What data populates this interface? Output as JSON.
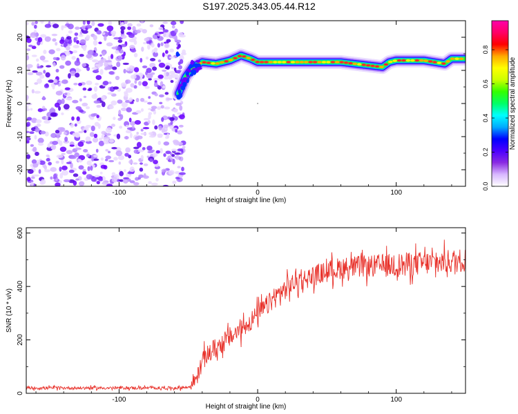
{
  "title": "S197.2025.343.05.44.R12",
  "chart_data": [
    {
      "type": "heatmap",
      "name": "spectrogram",
      "xlabel": "Height of straight line (km)",
      "ylabel": "Frequency (Hz)",
      "xlim": [
        -167,
        150
      ],
      "ylim": [
        -25,
        25
      ],
      "x_ticks": [
        -100,
        0,
        100
      ],
      "y_ticks": [
        -20,
        -10,
        0,
        10,
        20
      ],
      "colorbar": {
        "label": "Normalized spectral amplitude",
        "range": [
          0,
          1
        ],
        "ticks": [
          "0.0",
          "0.2",
          "0.4",
          "0.6",
          "0.8"
        ],
        "colors": [
          "#ffffff",
          "#d8b8ff",
          "#8a2be2",
          "#4b00ff",
          "#0000ff",
          "#00aaff",
          "#00ffff",
          "#00ff66",
          "#33ff00",
          "#ccff00",
          "#ffff00",
          "#ffaa00",
          "#ff0000",
          "#ff0066",
          "#ff00aa"
        ]
      },
      "noise_region_x": [
        -167,
        -53
      ],
      "ridge": {
        "x": [
          -57,
          -52,
          -47,
          -40,
          -30,
          -20,
          -12,
          -5,
          0,
          10,
          40,
          60,
          80,
          90,
          95,
          100,
          120,
          135,
          140,
          150
        ],
        "freq_hz": [
          3,
          8,
          11,
          12.5,
          12,
          13,
          14.5,
          13.5,
          12.5,
          12.5,
          12.5,
          12.5,
          11.5,
          11,
          12.5,
          13,
          13,
          12,
          13.5,
          13.5
        ]
      }
    },
    {
      "type": "line",
      "name": "snr",
      "xlabel": "Height of straight line (km)",
      "ylabel": "SNR (10 * v/v)",
      "xlim": [
        -167,
        150
      ],
      "ylim": [
        0,
        620
      ],
      "x_ticks": [
        -100,
        0,
        100
      ],
      "y_ticks": [
        0,
        200,
        400,
        600
      ],
      "series": [
        {
          "name": "SNR",
          "color": "#e8312a",
          "x": [
            -167,
            -140,
            -100,
            -60,
            -50,
            -44,
            -40,
            -35,
            -25,
            -15,
            -5,
            5,
            15,
            25,
            40,
            60,
            80,
            100,
            115,
            130,
            150
          ],
          "y": [
            20,
            20,
            20,
            20,
            22,
            55,
            120,
            150,
            190,
            230,
            270,
            320,
            370,
            410,
            440,
            470,
            475,
            480,
            485,
            490,
            500
          ],
          "noise": [
            8,
            8,
            8,
            8,
            10,
            40,
            50,
            55,
            55,
            55,
            55,
            55,
            55,
            55,
            55,
            60,
            60,
            65,
            65,
            65,
            65
          ]
        }
      ]
    }
  ]
}
